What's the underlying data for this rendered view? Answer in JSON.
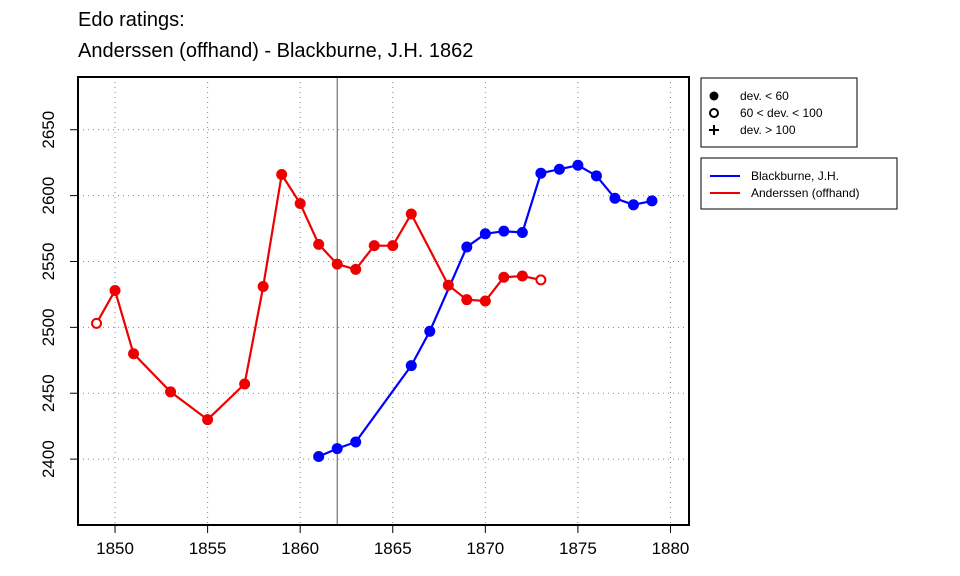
{
  "chart_data": {
    "type": "line",
    "title": "Edo ratings:",
    "subtitle": "Anderssen (offhand) - Blackburne, J.H. 1862",
    "xlabel": "",
    "ylabel": "",
    "xlim": [
      1848,
      1881
    ],
    "ylim": [
      2350,
      2690
    ],
    "x_ticks": [
      1850,
      1855,
      1860,
      1865,
      1870,
      1875,
      1880
    ],
    "y_ticks": [
      2400,
      2450,
      2500,
      2550,
      2600,
      2650
    ],
    "grid": true,
    "marker_year": 1862,
    "series": [
      {
        "name": "Blackburne, J.H.",
        "color": "#0000ff",
        "points": [
          {
            "x": 1861,
            "y": 2402,
            "dev": "low"
          },
          {
            "x": 1862,
            "y": 2408,
            "dev": "low"
          },
          {
            "x": 1863,
            "y": 2413,
            "dev": "low"
          },
          {
            "x": 1866,
            "y": 2471,
            "dev": "low"
          },
          {
            "x": 1867,
            "y": 2497,
            "dev": "low"
          },
          {
            "x": 1869,
            "y": 2561,
            "dev": "low"
          },
          {
            "x": 1870,
            "y": 2571,
            "dev": "low"
          },
          {
            "x": 1871,
            "y": 2573,
            "dev": "low"
          },
          {
            "x": 1872,
            "y": 2572,
            "dev": "low"
          },
          {
            "x": 1873,
            "y": 2617,
            "dev": "low"
          },
          {
            "x": 1874,
            "y": 2620,
            "dev": "low"
          },
          {
            "x": 1875,
            "y": 2623,
            "dev": "low"
          },
          {
            "x": 1876,
            "y": 2615,
            "dev": "low"
          },
          {
            "x": 1877,
            "y": 2598,
            "dev": "low"
          },
          {
            "x": 1878,
            "y": 2593,
            "dev": "low"
          },
          {
            "x": 1879,
            "y": 2596,
            "dev": "low"
          }
        ]
      },
      {
        "name": "Anderssen (offhand)",
        "color": "#ee0000",
        "points": [
          {
            "x": 1849,
            "y": 2503,
            "dev": "mid"
          },
          {
            "x": 1850,
            "y": 2528,
            "dev": "low"
          },
          {
            "x": 1851,
            "y": 2480,
            "dev": "low"
          },
          {
            "x": 1853,
            "y": 2451,
            "dev": "low"
          },
          {
            "x": 1855,
            "y": 2430,
            "dev": "low"
          },
          {
            "x": 1857,
            "y": 2457,
            "dev": "low"
          },
          {
            "x": 1858,
            "y": 2531,
            "dev": "low"
          },
          {
            "x": 1859,
            "y": 2616,
            "dev": "low"
          },
          {
            "x": 1860,
            "y": 2594,
            "dev": "low"
          },
          {
            "x": 1861,
            "y": 2563,
            "dev": "low"
          },
          {
            "x": 1862,
            "y": 2548,
            "dev": "low"
          },
          {
            "x": 1863,
            "y": 2544,
            "dev": "low"
          },
          {
            "x": 1864,
            "y": 2562,
            "dev": "low"
          },
          {
            "x": 1865,
            "y": 2562,
            "dev": "low"
          },
          {
            "x": 1866,
            "y": 2586,
            "dev": "low"
          },
          {
            "x": 1868,
            "y": 2532,
            "dev": "low"
          },
          {
            "x": 1869,
            "y": 2521,
            "dev": "low"
          },
          {
            "x": 1870,
            "y": 2520,
            "dev": "low"
          },
          {
            "x": 1871,
            "y": 2538,
            "dev": "low"
          },
          {
            "x": 1872,
            "y": 2539,
            "dev": "low"
          },
          {
            "x": 1873,
            "y": 2536,
            "dev": "mid"
          }
        ]
      }
    ],
    "dev_legend": [
      {
        "marker": "filled-circle",
        "label": "dev. < 60"
      },
      {
        "marker": "open-circle",
        "label": "60 < dev. < 100"
      },
      {
        "marker": "plus",
        "label": "dev. > 100"
      }
    ],
    "legend_placement": "right"
  }
}
